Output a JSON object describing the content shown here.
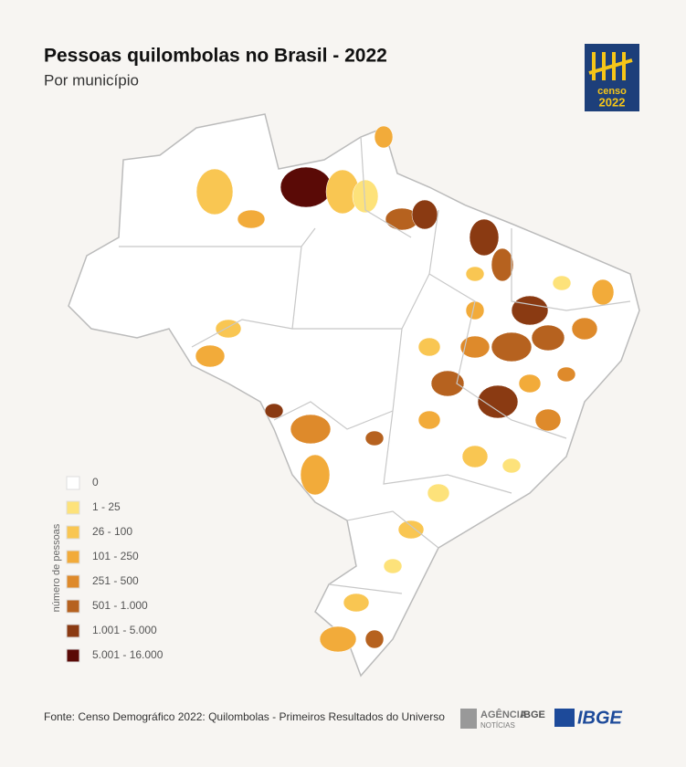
{
  "header": {
    "title": "Pessoas quilombolas no Brasil - 2022",
    "subtitle": "Por município"
  },
  "logo": {
    "word": "censo",
    "year": "2022"
  },
  "legend": {
    "title": "número de pessoas",
    "items": [
      {
        "label": "0",
        "color": "#ffffff"
      },
      {
        "label": "1 - 25",
        "color": "#fde27a"
      },
      {
        "label": "26 - 100",
        "color": "#f9c652"
      },
      {
        "label": "101 - 250",
        "color": "#f2ab3a"
      },
      {
        "label": "251 - 500",
        "color": "#de8a2b"
      },
      {
        "label": "501 - 1.000",
        "color": "#b6621f"
      },
      {
        "label": "1.001 - 5.000",
        "color": "#8a3a12"
      },
      {
        "label": "5.001 - 16.000",
        "color": "#5a0a06"
      }
    ]
  },
  "footer": {
    "source": "Fonte: Censo Demográfico 2022: Quilombolas - Primeiros Resultados do Universo",
    "agency": "AGÊNCIA",
    "agency_brand": "IBGE",
    "agency_sub": "NOTÍCIAS",
    "brand": "IBGE"
  }
}
